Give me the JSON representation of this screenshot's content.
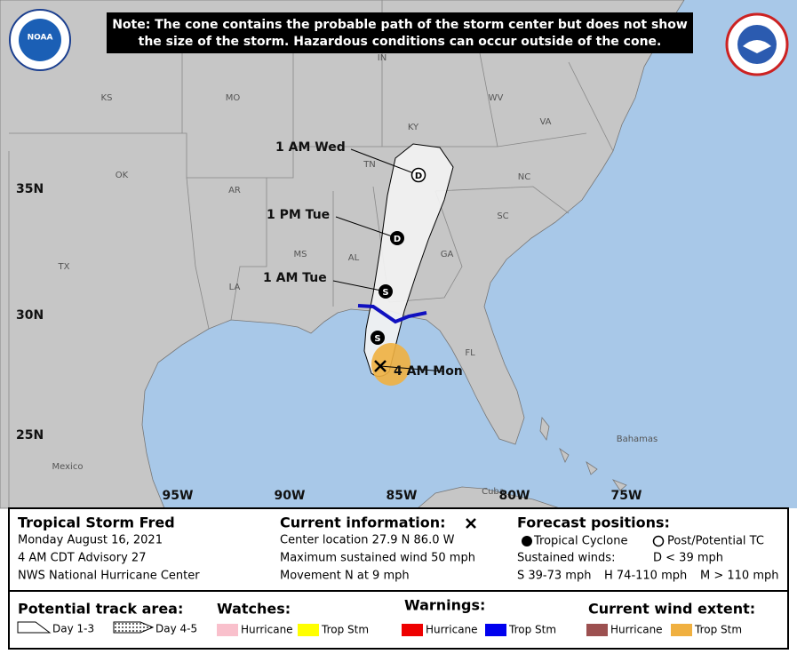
{
  "logo": "NOAA",
  "note": [
    "Note: The cone contains the probable path of the storm center but does not show",
    "the size of the storm. Hazardous conditions can occur outside of the cone."
  ],
  "map": {
    "state_labels": [
      "IN",
      "KS",
      "MO",
      "WV",
      "KY",
      "VA",
      "TN",
      "OK",
      "AR",
      "NC",
      "SC",
      "MS",
      "AL",
      "GA",
      "TX",
      "LA",
      "FL"
    ],
    "country_labels": [
      "Mexico",
      "Bahamas",
      "Cuba"
    ],
    "lat_labels": [
      "35N",
      "30N",
      "25N"
    ],
    "lon_labels": [
      "95W",
      "90W",
      "85W",
      "80W",
      "75W"
    ],
    "forecast_points": [
      {
        "label": "4 AM Mon"
      },
      {
        "symbol": "S"
      },
      {
        "label": "1 AM Tue",
        "symbol": "S"
      },
      {
        "label": "1 PM Tue",
        "symbol": "D"
      },
      {
        "label": "1 AM Wed",
        "symbol": "D"
      }
    ]
  },
  "info": {
    "storm": {
      "title": "Tropical Storm Fred",
      "lines": [
        "Monday August 16, 2021",
        "4 AM CDT Advisory 27",
        "NWS National Hurricane Center"
      ]
    },
    "current": {
      "title": "Current information:",
      "lines": [
        "Center location 27.9 N 86.0 W",
        "Maximum sustained wind 50 mph",
        "Movement N at 9 mph"
      ]
    },
    "forecast": {
      "title": "Forecast positions:",
      "tropical": "Tropical Cyclone",
      "post": "Post/Potential TC",
      "winds": "Sustained winds:",
      "d": "D < 39 mph",
      "s": "S 39-73 mph",
      "h": "H 74-110 mph",
      "m": "M > 110 mph"
    },
    "legend": {
      "track": {
        "title": "Potential track area:",
        "day13": "Day 1-3",
        "day45": "Day 4-5"
      },
      "watches": {
        "title": "Watches:",
        "hurricane": "Hurricane",
        "trop": "Trop Stm"
      },
      "warnings": {
        "title": "Warnings:",
        "hurricane": "Hurricane",
        "trop": "Trop Stm"
      },
      "wind": {
        "title": "Current wind extent:",
        "hurricane": "Hurricane",
        "trop": "Trop Stm"
      }
    }
  }
}
